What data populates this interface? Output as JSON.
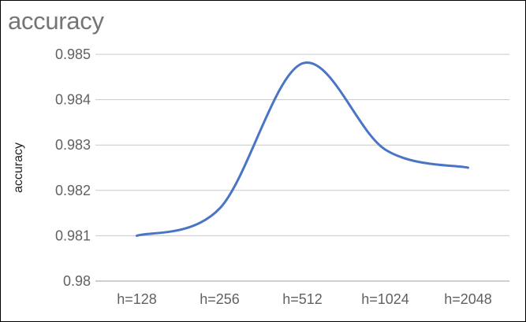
{
  "chart_data": {
    "type": "line",
    "title": "accuracy",
    "xlabel": "",
    "ylabel": "accuracy",
    "categories": [
      "h=128",
      "h=256",
      "h=512",
      "h=1024",
      "h=2048"
    ],
    "series": [
      {
        "values": [
          0.981,
          0.9816,
          0.9848,
          0.9829,
          0.9825
        ]
      }
    ],
    "ylim": [
      0.98,
      0.985
    ],
    "yticks": [
      "0.98",
      "0.981",
      "0.982",
      "0.983",
      "0.984",
      "0.985"
    ],
    "grid": true,
    "smooth": true,
    "line_color": "#4a74c4",
    "grid_color": "#c8c8c8",
    "axis_color": "#9e9e9e"
  }
}
